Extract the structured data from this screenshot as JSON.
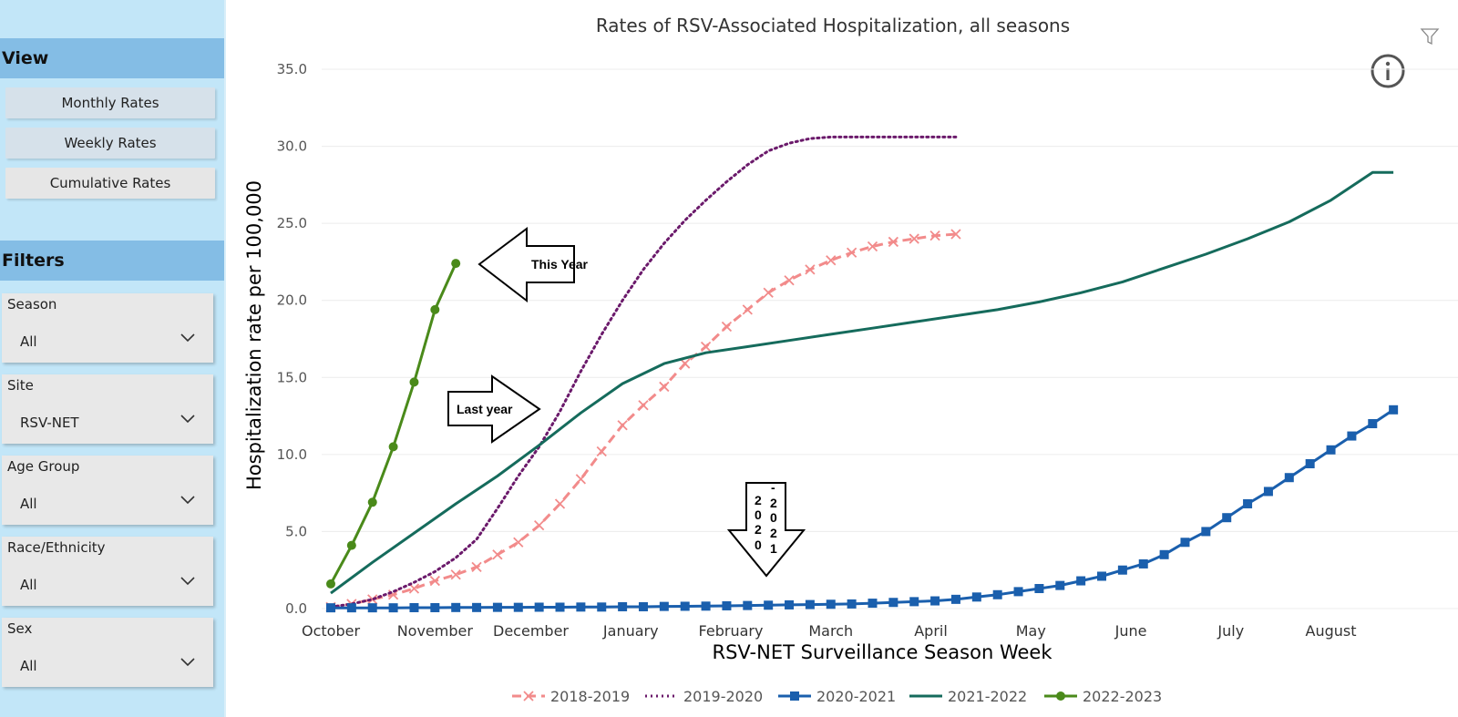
{
  "sidebar": {
    "view_header": "View",
    "view_buttons": [
      "Monthly Rates",
      "Weekly Rates",
      "Cumulative Rates"
    ],
    "filters_header": "Filters",
    "filters": [
      {
        "label": "Season",
        "value": "All"
      },
      {
        "label": "Site",
        "value": "RSV-NET"
      },
      {
        "label": "Age Group",
        "value": "All"
      },
      {
        "label": "Race/Ethnicity",
        "value": "All"
      },
      {
        "label": "Sex",
        "value": "All"
      }
    ]
  },
  "annotations": {
    "this_year": "This Year",
    "last_year": "Last year",
    "season_2020_left": [
      "2",
      "0",
      "2",
      "0"
    ],
    "season_2020_dash": "-",
    "season_2020_right": [
      "2",
      "0",
      "2",
      "1"
    ]
  },
  "icons": {
    "filter": "filter-icon",
    "info": "info-icon"
  },
  "chart_data": {
    "type": "line",
    "title": "Rates of RSV-Associated Hospitalization, all seasons",
    "xlabel": "RSV-NET Surveillance Season Week",
    "ylabel": "Hospitalization rate per 100,000",
    "ylim": [
      0,
      35
    ],
    "yticks": [
      "0.0",
      "5.0",
      "10.0",
      "15.0",
      "20.0",
      "25.0",
      "30.0",
      "35.0"
    ],
    "xlim": [
      0,
      52
    ],
    "month_labels": [
      {
        "label": "October",
        "week": 0
      },
      {
        "label": "November",
        "week": 5
      },
      {
        "label": "December",
        "week": 9.6
      },
      {
        "label": "January",
        "week": 14.4
      },
      {
        "label": "February",
        "week": 19.2
      },
      {
        "label": "March",
        "week": 24
      },
      {
        "label": "April",
        "week": 28.8
      },
      {
        "label": "May",
        "week": 33.6
      },
      {
        "label": "June",
        "week": 38.4
      },
      {
        "label": "July",
        "week": 43.2
      },
      {
        "label": "August",
        "week": 48
      }
    ],
    "legend_position": "bottom",
    "series": [
      {
        "name": "2018-2019",
        "color": "#f28b8b",
        "style": "dashed",
        "marker": "x",
        "x": [
          0,
          1,
          2,
          3,
          4,
          5,
          6,
          7,
          8,
          9,
          10,
          11,
          12,
          13,
          14,
          15,
          16,
          17,
          18,
          19,
          20,
          21,
          22,
          23,
          24,
          25,
          26,
          27,
          28,
          29,
          30
        ],
        "y": [
          0.1,
          0.3,
          0.6,
          0.9,
          1.3,
          1.8,
          2.2,
          2.7,
          3.5,
          4.3,
          5.4,
          6.8,
          8.4,
          10.2,
          11.9,
          13.2,
          14.4,
          15.9,
          17.0,
          18.3,
          19.4,
          20.5,
          21.3,
          22.0,
          22.6,
          23.1,
          23.5,
          23.8,
          24.0,
          24.2,
          24.3
        ]
      },
      {
        "name": "2019-2020",
        "color": "#6b1a6b",
        "style": "dotted",
        "marker": "none",
        "x": [
          0,
          1,
          2,
          3,
          4,
          5,
          6,
          7,
          8,
          9,
          10,
          11,
          12,
          13,
          14,
          15,
          16,
          17,
          18,
          19,
          20,
          21,
          22,
          23,
          24,
          25,
          26,
          27,
          28,
          29,
          30
        ],
        "y": [
          0.1,
          0.3,
          0.6,
          1.1,
          1.7,
          2.4,
          3.3,
          4.5,
          6.5,
          8.6,
          10.5,
          12.8,
          15.4,
          17.8,
          20.0,
          22.0,
          23.7,
          25.2,
          26.5,
          27.7,
          28.8,
          29.7,
          30.2,
          30.5,
          30.6,
          30.6,
          30.6,
          30.6,
          30.6,
          30.6,
          30.6
        ]
      },
      {
        "name": "2020-2021",
        "color": "#1a5fad",
        "style": "solid",
        "marker": "square",
        "x": [
          0,
          1,
          2,
          3,
          4,
          5,
          6,
          7,
          8,
          9,
          10,
          11,
          12,
          13,
          14,
          15,
          16,
          17,
          18,
          19,
          20,
          21,
          22,
          23,
          24,
          25,
          26,
          27,
          28,
          29,
          30,
          31,
          32,
          33,
          34,
          35,
          36,
          37,
          38,
          39,
          40,
          41,
          42,
          43,
          44,
          45,
          46,
          47,
          48,
          49,
          50,
          51
        ],
        "y": [
          0.05,
          0.05,
          0.05,
          0.05,
          0.06,
          0.06,
          0.07,
          0.07,
          0.08,
          0.08,
          0.09,
          0.09,
          0.1,
          0.1,
          0.12,
          0.12,
          0.14,
          0.15,
          0.16,
          0.18,
          0.2,
          0.22,
          0.24,
          0.26,
          0.28,
          0.3,
          0.35,
          0.4,
          0.45,
          0.5,
          0.6,
          0.75,
          0.9,
          1.1,
          1.3,
          1.5,
          1.8,
          2.1,
          2.5,
          2.9,
          3.5,
          4.3,
          5.0,
          5.9,
          6.8,
          7.6,
          8.5,
          9.4,
          10.3,
          11.2,
          12.0,
          12.9
        ]
      },
      {
        "name": "2021-2022",
        "color": "#156b5c",
        "style": "solid",
        "marker": "none",
        "x": [
          0,
          2,
          4,
          6,
          8,
          10,
          12,
          14,
          16,
          18,
          20,
          22,
          24,
          26,
          28,
          30,
          32,
          34,
          36,
          38,
          40,
          42,
          44,
          46,
          48,
          50,
          51
        ],
        "y": [
          1.0,
          3.0,
          4.9,
          6.8,
          8.6,
          10.6,
          12.7,
          14.6,
          15.9,
          16.6,
          17.0,
          17.4,
          17.8,
          18.2,
          18.6,
          19.0,
          19.4,
          19.9,
          20.5,
          21.2,
          22.1,
          23.0,
          24.0,
          25.1,
          26.5,
          28.3,
          28.3
        ]
      },
      {
        "name": "2022-2023",
        "color": "#4a8a1a",
        "style": "solid",
        "marker": "circle",
        "x": [
          0,
          1,
          2,
          3,
          4,
          5,
          6
        ],
        "y": [
          1.6,
          4.1,
          6.9,
          10.5,
          14.7,
          19.4,
          22.4
        ]
      }
    ]
  }
}
